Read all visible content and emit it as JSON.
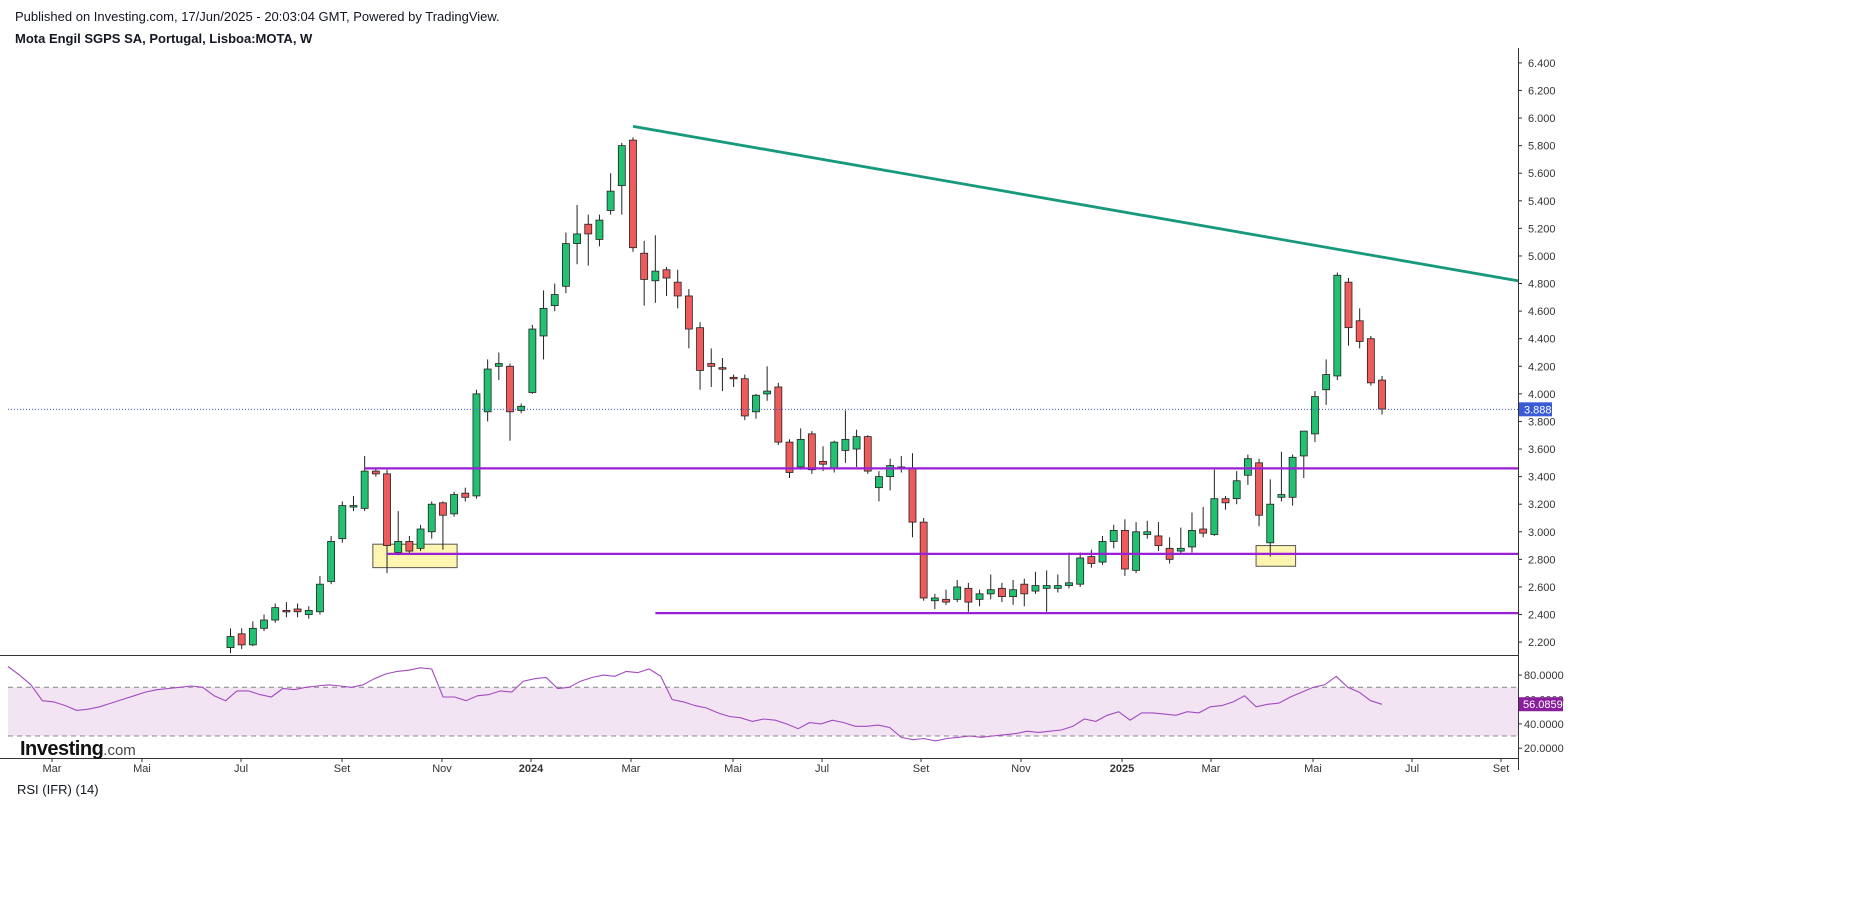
{
  "header": {
    "published": "Published on Investing.com, 17/Jun/2025 - 20:03:04 GMT, Powered by TradingView.",
    "symbol": "Mota Engil SGPS SA, Portugal, Lisboa:MOTA, W"
  },
  "logo": {
    "main": "Investing",
    "suffix": ".com"
  },
  "chart_data": {
    "type": "candlestick",
    "interval": "W",
    "price_axis": {
      "range": [
        2.15,
        6.45
      ],
      "ticks": [
        "6.400",
        "6.200",
        "6.000",
        "5.800",
        "5.600",
        "5.400",
        "5.200",
        "5.000",
        "4.800",
        "4.600",
        "4.400",
        "4.200",
        "4.000",
        "3.800",
        "3.600",
        "3.400",
        "3.200",
        "3.000",
        "2.800",
        "2.600",
        "2.400",
        "2.200"
      ],
      "last_price_label": "3.888",
      "last_price": 3.888
    },
    "time_axis": {
      "labels": [
        "Mar",
        "Mai",
        "Jul",
        "Set",
        "Nov",
        "2024",
        "Mar",
        "Mai",
        "Jul",
        "Set",
        "Nov",
        "2025",
        "Mar",
        "Mai",
        "Jul",
        "Set"
      ],
      "bold": [
        "2024",
        "2025"
      ]
    },
    "candles": [
      {
        "o": 2.16,
        "h": 2.3,
        "l": 2.12,
        "c": 2.24
      },
      {
        "o": 2.26,
        "h": 2.3,
        "l": 2.15,
        "c": 2.18
      },
      {
        "o": 2.18,
        "h": 2.35,
        "l": 2.17,
        "c": 2.3
      },
      {
        "o": 2.3,
        "h": 2.4,
        "l": 2.28,
        "c": 2.36
      },
      {
        "o": 2.36,
        "h": 2.48,
        "l": 2.34,
        "c": 2.45
      },
      {
        "o": 2.43,
        "h": 2.49,
        "l": 2.38,
        "c": 2.42
      },
      {
        "o": 2.44,
        "h": 2.48,
        "l": 2.38,
        "c": 2.42
      },
      {
        "o": 2.4,
        "h": 2.46,
        "l": 2.37,
        "c": 2.43
      },
      {
        "o": 2.42,
        "h": 2.68,
        "l": 2.4,
        "c": 2.62
      },
      {
        "o": 2.64,
        "h": 2.97,
        "l": 2.62,
        "c": 2.93
      },
      {
        "o": 2.95,
        "h": 3.22,
        "l": 2.92,
        "c": 3.19
      },
      {
        "o": 3.18,
        "h": 3.26,
        "l": 3.15,
        "c": 3.19
      },
      {
        "o": 3.17,
        "h": 3.55,
        "l": 3.15,
        "c": 3.44
      },
      {
        "o": 3.44,
        "h": 3.46,
        "l": 3.4,
        "c": 3.42
      },
      {
        "o": 3.42,
        "h": 3.45,
        "l": 2.7,
        "c": 2.9
      },
      {
        "o": 2.85,
        "h": 3.15,
        "l": 2.83,
        "c": 2.93
      },
      {
        "o": 2.93,
        "h": 2.97,
        "l": 2.84,
        "c": 2.86
      },
      {
        "o": 2.88,
        "h": 3.05,
        "l": 2.86,
        "c": 3.02
      },
      {
        "o": 3.0,
        "h": 3.22,
        "l": 2.95,
        "c": 3.2
      },
      {
        "o": 3.21,
        "h": 3.22,
        "l": 2.87,
        "c": 3.12
      },
      {
        "o": 3.13,
        "h": 3.29,
        "l": 3.11,
        "c": 3.27
      },
      {
        "o": 3.28,
        "h": 3.32,
        "l": 3.22,
        "c": 3.25
      },
      {
        "o": 3.26,
        "h": 4.03,
        "l": 3.24,
        "c": 4.0
      },
      {
        "o": 3.87,
        "h": 4.25,
        "l": 3.8,
        "c": 4.18
      },
      {
        "o": 4.2,
        "h": 4.3,
        "l": 4.1,
        "c": 4.22
      },
      {
        "o": 4.2,
        "h": 4.22,
        "l": 3.66,
        "c": 3.87
      },
      {
        "o": 3.88,
        "h": 3.93,
        "l": 3.86,
        "c": 3.91
      },
      {
        "o": 4.01,
        "h": 4.5,
        "l": 4.0,
        "c": 4.47
      },
      {
        "o": 4.42,
        "h": 4.75,
        "l": 4.25,
        "c": 4.62
      },
      {
        "o": 4.64,
        "h": 4.8,
        "l": 4.6,
        "c": 4.72
      },
      {
        "o": 4.78,
        "h": 5.17,
        "l": 4.73,
        "c": 5.09
      },
      {
        "o": 5.09,
        "h": 5.37,
        "l": 4.94,
        "c": 5.16
      },
      {
        "o": 5.23,
        "h": 5.3,
        "l": 4.93,
        "c": 5.16
      },
      {
        "o": 5.12,
        "h": 5.3,
        "l": 5.07,
        "c": 5.26
      },
      {
        "o": 5.33,
        "h": 5.6,
        "l": 5.3,
        "c": 5.47
      },
      {
        "o": 5.51,
        "h": 5.82,
        "l": 5.3,
        "c": 5.8
      },
      {
        "o": 5.84,
        "h": 5.86,
        "l": 5.03,
        "c": 5.06
      },
      {
        "o": 5.02,
        "h": 5.11,
        "l": 4.64,
        "c": 4.83
      },
      {
        "o": 4.82,
        "h": 5.15,
        "l": 4.66,
        "c": 4.89
      },
      {
        "o": 4.9,
        "h": 4.92,
        "l": 4.71,
        "c": 4.84
      },
      {
        "o": 4.81,
        "h": 4.9,
        "l": 4.62,
        "c": 4.71
      },
      {
        "o": 4.71,
        "h": 4.76,
        "l": 4.33,
        "c": 4.47
      },
      {
        "o": 4.48,
        "h": 4.52,
        "l": 4.03,
        "c": 4.17
      },
      {
        "o": 4.22,
        "h": 4.33,
        "l": 4.05,
        "c": 4.2
      },
      {
        "o": 4.19,
        "h": 4.26,
        "l": 4.02,
        "c": 4.18
      },
      {
        "o": 4.12,
        "h": 4.14,
        "l": 4.05,
        "c": 4.11
      },
      {
        "o": 4.11,
        "h": 4.14,
        "l": 3.81,
        "c": 3.84
      },
      {
        "o": 3.87,
        "h": 4.0,
        "l": 3.82,
        "c": 3.99
      },
      {
        "o": 4.0,
        "h": 4.2,
        "l": 3.95,
        "c": 4.02
      },
      {
        "o": 4.05,
        "h": 4.08,
        "l": 3.63,
        "c": 3.65
      },
      {
        "o": 3.65,
        "h": 3.67,
        "l": 3.39,
        "c": 3.43
      },
      {
        "o": 3.47,
        "h": 3.75,
        "l": 3.45,
        "c": 3.67
      },
      {
        "o": 3.71,
        "h": 3.73,
        "l": 3.42,
        "c": 3.45
      },
      {
        "o": 3.51,
        "h": 3.62,
        "l": 3.44,
        "c": 3.49
      },
      {
        "o": 3.46,
        "h": 3.66,
        "l": 3.43,
        "c": 3.65
      },
      {
        "o": 3.59,
        "h": 3.88,
        "l": 3.5,
        "c": 3.67
      },
      {
        "o": 3.6,
        "h": 3.74,
        "l": 3.47,
        "c": 3.69
      },
      {
        "o": 3.69,
        "h": 3.7,
        "l": 3.42,
        "c": 3.44
      },
      {
        "o": 3.32,
        "h": 3.44,
        "l": 3.22,
        "c": 3.4
      },
      {
        "o": 3.4,
        "h": 3.53,
        "l": 3.3,
        "c": 3.48
      },
      {
        "o": 3.46,
        "h": 3.55,
        "l": 3.43,
        "c": 3.47
      },
      {
        "o": 3.46,
        "h": 3.57,
        "l": 2.96,
        "c": 3.07
      },
      {
        "o": 3.07,
        "h": 3.1,
        "l": 2.5,
        "c": 2.52
      },
      {
        "o": 2.5,
        "h": 2.55,
        "l": 2.44,
        "c": 2.52
      },
      {
        "o": 2.51,
        "h": 2.58,
        "l": 2.47,
        "c": 2.49
      },
      {
        "o": 2.51,
        "h": 2.65,
        "l": 2.49,
        "c": 2.6
      },
      {
        "o": 2.59,
        "h": 2.63,
        "l": 2.42,
        "c": 2.49
      },
      {
        "o": 2.51,
        "h": 2.58,
        "l": 2.46,
        "c": 2.55
      },
      {
        "o": 2.55,
        "h": 2.69,
        "l": 2.51,
        "c": 2.58
      },
      {
        "o": 2.59,
        "h": 2.63,
        "l": 2.49,
        "c": 2.53
      },
      {
        "o": 2.53,
        "h": 2.65,
        "l": 2.47,
        "c": 2.58
      },
      {
        "o": 2.62,
        "h": 2.66,
        "l": 2.46,
        "c": 2.55
      },
      {
        "o": 2.57,
        "h": 2.71,
        "l": 2.55,
        "c": 2.61
      },
      {
        "o": 2.59,
        "h": 2.72,
        "l": 2.42,
        "c": 2.61
      },
      {
        "o": 2.59,
        "h": 2.69,
        "l": 2.56,
        "c": 2.61
      },
      {
        "o": 2.61,
        "h": 2.85,
        "l": 2.59,
        "c": 2.63
      },
      {
        "o": 2.62,
        "h": 2.85,
        "l": 2.6,
        "c": 2.81
      },
      {
        "o": 2.82,
        "h": 2.87,
        "l": 2.74,
        "c": 2.77
      },
      {
        "o": 2.78,
        "h": 2.97,
        "l": 2.76,
        "c": 2.93
      },
      {
        "o": 2.93,
        "h": 3.05,
        "l": 2.88,
        "c": 3.01
      },
      {
        "o": 3.01,
        "h": 3.09,
        "l": 2.68,
        "c": 2.73
      },
      {
        "o": 2.72,
        "h": 3.07,
        "l": 2.7,
        "c": 3.0
      },
      {
        "o": 2.98,
        "h": 3.08,
        "l": 2.95,
        "c": 3.0
      },
      {
        "o": 2.97,
        "h": 3.07,
        "l": 2.86,
        "c": 2.9
      },
      {
        "o": 2.88,
        "h": 2.96,
        "l": 2.77,
        "c": 2.8
      },
      {
        "o": 2.86,
        "h": 3.03,
        "l": 2.84,
        "c": 2.88
      },
      {
        "o": 2.89,
        "h": 3.14,
        "l": 2.85,
        "c": 3.01
      },
      {
        "o": 3.02,
        "h": 3.18,
        "l": 2.96,
        "c": 2.99
      },
      {
        "o": 2.98,
        "h": 3.45,
        "l": 2.97,
        "c": 3.24
      },
      {
        "o": 3.24,
        "h": 3.26,
        "l": 3.16,
        "c": 3.21
      },
      {
        "o": 3.24,
        "h": 3.44,
        "l": 3.2,
        "c": 3.37
      },
      {
        "o": 3.41,
        "h": 3.56,
        "l": 3.34,
        "c": 3.53
      },
      {
        "o": 3.5,
        "h": 3.53,
        "l": 3.04,
        "c": 3.12
      },
      {
        "o": 2.92,
        "h": 3.38,
        "l": 2.82,
        "c": 3.2
      },
      {
        "o": 3.25,
        "h": 3.58,
        "l": 3.22,
        "c": 3.27
      },
      {
        "o": 3.25,
        "h": 3.56,
        "l": 3.19,
        "c": 3.54
      },
      {
        "o": 3.55,
        "h": 3.73,
        "l": 3.39,
        "c": 3.73
      },
      {
        "o": 3.71,
        "h": 4.02,
        "l": 3.65,
        "c": 3.98
      },
      {
        "o": 4.03,
        "h": 4.25,
        "l": 3.92,
        "c": 4.14
      },
      {
        "o": 4.13,
        "h": 4.88,
        "l": 4.1,
        "c": 4.86
      },
      {
        "o": 4.81,
        "h": 4.84,
        "l": 4.35,
        "c": 4.48
      },
      {
        "o": 4.53,
        "h": 4.62,
        "l": 4.33,
        "c": 4.38
      },
      {
        "o": 4.4,
        "h": 4.42,
        "l": 4.06,
        "c": 4.08
      },
      {
        "o": 4.1,
        "h": 4.13,
        "l": 3.85,
        "c": 3.89
      }
    ],
    "trendline": {
      "from": {
        "week": 36,
        "price": 5.94
      },
      "to": {
        "week": 130,
        "price": 4.61
      }
    },
    "support_lines": [
      {
        "price": 3.46,
        "from_week": 12
      },
      {
        "price": 2.84,
        "from_week": 14
      },
      {
        "price": 2.41,
        "from_week": 38
      }
    ],
    "highlight_zones": [
      {
        "from_week": 13,
        "to_week": 20,
        "low": 2.74,
        "high": 2.91
      },
      {
        "from_week": 92,
        "to_week": 95,
        "low": 2.75,
        "high": 2.9
      }
    ],
    "rsi": {
      "label": "RSI (IFR) (14)",
      "last_label": "56.0859",
      "last": 56.0859,
      "range": [
        12,
        94
      ],
      "ticks": [
        "80.0000",
        "60.0000",
        "40.0000",
        "20.0000"
      ],
      "overbought": 70,
      "oversold": 30,
      "values": [
        87,
        80,
        72,
        59,
        58,
        55,
        51,
        52,
        54,
        57,
        60,
        63,
        66,
        68,
        69,
        70,
        71,
        70,
        63,
        59,
        67,
        67,
        64,
        62,
        69,
        68,
        70,
        71,
        72,
        71,
        70,
        72,
        77,
        81,
        83,
        84,
        86,
        85,
        62,
        62,
        59,
        63,
        64,
        67,
        66,
        75,
        77,
        78,
        69,
        70,
        75,
        78,
        80,
        79,
        83,
        82,
        85,
        79,
        60,
        58,
        55,
        53,
        49,
        46,
        45,
        42,
        44,
        43,
        40,
        36,
        41,
        40,
        43,
        41,
        38,
        38,
        39,
        37,
        29,
        27,
        28,
        26,
        28,
        29,
        30,
        29,
        30,
        31,
        32,
        34,
        33,
        34,
        35,
        38,
        44,
        42,
        47,
        50,
        43,
        49,
        49,
        48,
        47,
        50,
        49,
        54,
        55,
        58,
        63,
        54,
        56,
        57,
        62,
        66,
        70,
        72,
        79,
        70,
        66,
        59,
        56
      ]
    }
  }
}
